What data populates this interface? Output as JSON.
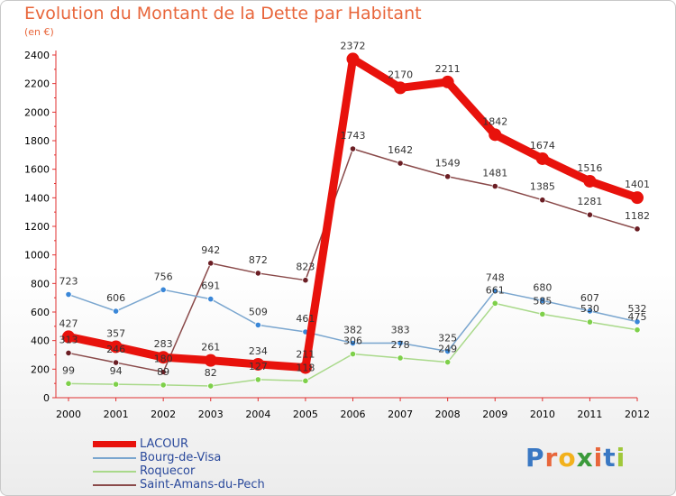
{
  "header": {
    "title": "Evolution du Montant de la Dette par Habitant",
    "subtitle": "(en €)"
  },
  "logo": {
    "text": "Proxiti",
    "colors": [
      "#3a78c3",
      "#e8663b",
      "#f2b11c",
      "#3a9a3a",
      "#e8663b",
      "#3a78c3",
      "#a0c83a"
    ]
  },
  "chart_data": {
    "type": "line",
    "title": "Evolution du Montant de la Dette par Habitant",
    "subtitle": "(en €)",
    "xlabel": "",
    "ylabel": "",
    "x": [
      "2000",
      "2001",
      "2002",
      "2003",
      "2004",
      "2005",
      "2006",
      "2007",
      "2008",
      "2009",
      "2010",
      "2011",
      "2012"
    ],
    "ylim": [
      0,
      2400
    ],
    "yticks": [
      0,
      200,
      400,
      600,
      800,
      1000,
      1200,
      1400,
      1600,
      1800,
      2000,
      2200,
      2400
    ],
    "grid": false,
    "legend_position": "bottom-left",
    "series": [
      {
        "name": "LACOUR",
        "color": "#e8120c",
        "marker_color": "#e8120c",
        "values": [
          427,
          357,
          283,
          261,
          234,
          211,
          2372,
          2170,
          2211,
          1842,
          1674,
          1516,
          1401
        ]
      },
      {
        "name": "Bourg-de-Visa",
        "color": "#7aa6cf",
        "marker_color": "#3a87d8",
        "values": [
          723,
          606,
          756,
          691,
          509,
          461,
          382,
          383,
          325,
          748,
          680,
          607,
          532
        ]
      },
      {
        "name": "Roquecor",
        "color": "#a9d98a",
        "marker_color": "#7ed04a",
        "values": [
          99,
          94,
          89,
          82,
          127,
          118,
          306,
          278,
          249,
          661,
          585,
          530,
          475
        ]
      },
      {
        "name": "Saint-Amans-du-Pech",
        "color": "#8a4a4a",
        "marker_color": "#6b1e24",
        "values": [
          313,
          246,
          180,
          942,
          872,
          823,
          1743,
          1642,
          1549,
          1481,
          1385,
          1281,
          1182
        ]
      }
    ]
  }
}
